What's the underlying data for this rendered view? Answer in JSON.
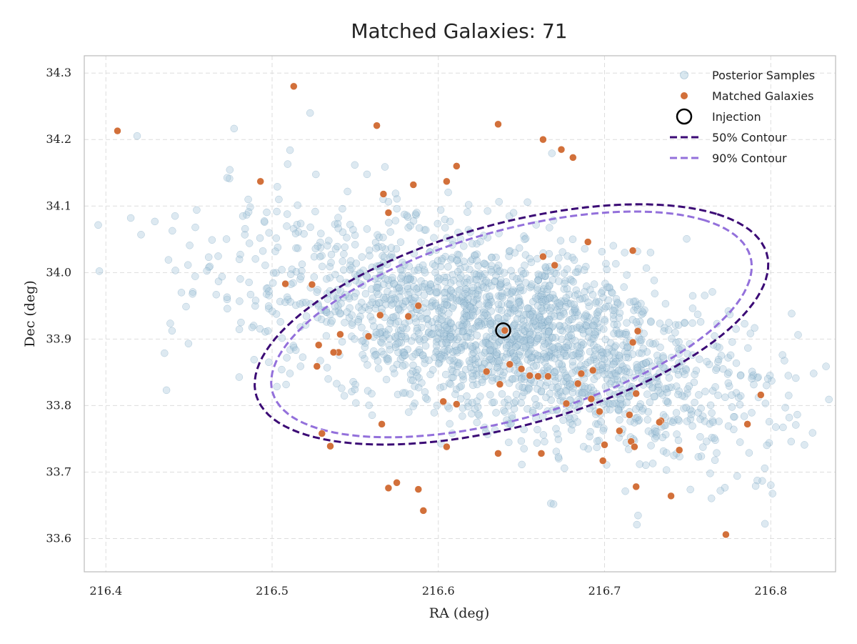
{
  "chart_data": {
    "type": "scatter",
    "title": "Matched Galaxies: 71",
    "xlabel": "RA (deg)",
    "ylabel": "Dec (deg)",
    "xlim": [
      216.387,
      216.839
    ],
    "ylim": [
      33.55,
      34.326
    ],
    "xticks": [
      216.4,
      216.5,
      216.6,
      216.7,
      216.8
    ],
    "xtick_labels": [
      "216.4",
      "216.5",
      "216.6",
      "216.7",
      "216.8"
    ],
    "yticks": [
      33.6,
      33.7,
      33.8,
      33.9,
      34.0,
      34.1,
      34.2,
      34.3
    ],
    "ytick_labels": [
      "33.6",
      "33.7",
      "33.8",
      "33.9",
      "34.0",
      "34.1",
      "34.2",
      "34.3"
    ],
    "grid": true,
    "legend_position": "top-right",
    "legend": [
      "Posterior Samples",
      "Matched Galaxies",
      "Injection",
      "50% Contour",
      "90% Contour"
    ],
    "colors": {
      "posterior": "#a9c9dc",
      "posterior_edge": "#5b8fb0",
      "matched": "#d2703a",
      "injection": "#000000",
      "contour50": "#3b0a75",
      "contour90": "#9370db",
      "grid": "#dddddd",
      "frame": "#bbbbbb"
    },
    "posterior_samples": {
      "count": 2200,
      "center": [
        216.639,
        33.91
      ],
      "sigma_major": 0.098,
      "sigma_minor": 0.053,
      "angle_deg": -52
    },
    "injection": {
      "ra": 216.639,
      "dec": 33.913
    },
    "contour_50": {
      "center": [
        216.644,
        33.922
      ],
      "a": 0.208,
      "b": 0.118,
      "angle_deg": 53,
      "ra_per_deg_dec": 0.986
    },
    "contour_90": {
      "center": [
        216.644,
        33.922
      ],
      "a": 0.196,
      "b": 0.109,
      "angle_deg": 53,
      "ra_per_deg_dec": 0.986
    },
    "matched_galaxies": [
      [
        216.407,
        34.213
      ],
      [
        216.513,
        34.28
      ],
      [
        216.493,
        34.137
      ],
      [
        216.508,
        33.983
      ],
      [
        216.563,
        34.221
      ],
      [
        216.567,
        34.118
      ],
      [
        216.57,
        34.09
      ],
      [
        216.585,
        34.132
      ],
      [
        216.611,
        34.16
      ],
      [
        216.605,
        34.137
      ],
      [
        216.636,
        34.223
      ],
      [
        216.663,
        34.2
      ],
      [
        216.681,
        34.173
      ],
      [
        216.674,
        34.185
      ],
      [
        216.69,
        34.046
      ],
      [
        216.717,
        34.033
      ],
      [
        216.663,
        34.024
      ],
      [
        216.67,
        34.011
      ],
      [
        216.64,
        33.913
      ],
      [
        216.588,
        33.95
      ],
      [
        216.582,
        33.934
      ],
      [
        216.565,
        33.936
      ],
      [
        216.558,
        33.904
      ],
      [
        216.541,
        33.907
      ],
      [
        216.524,
        33.982
      ],
      [
        216.528,
        33.891
      ],
      [
        216.54,
        33.88
      ],
      [
        216.537,
        33.88
      ],
      [
        216.527,
        33.859
      ],
      [
        216.629,
        33.851
      ],
      [
        216.643,
        33.862
      ],
      [
        216.65,
        33.855
      ],
      [
        216.655,
        33.845
      ],
      [
        216.637,
        33.832
      ],
      [
        216.611,
        33.802
      ],
      [
        216.603,
        33.806
      ],
      [
        216.66,
        33.844
      ],
      [
        216.666,
        33.844
      ],
      [
        216.677,
        33.803
      ],
      [
        216.686,
        33.848
      ],
      [
        216.693,
        33.853
      ],
      [
        216.684,
        33.833
      ],
      [
        216.697,
        33.791
      ],
      [
        216.692,
        33.81
      ],
      [
        216.7,
        33.741
      ],
      [
        216.709,
        33.762
      ],
      [
        216.719,
        33.818
      ],
      [
        216.72,
        33.912
      ],
      [
        216.717,
        33.895
      ],
      [
        216.715,
        33.786
      ],
      [
        216.636,
        33.728
      ],
      [
        216.605,
        33.738
      ],
      [
        216.53,
        33.758
      ],
      [
        216.535,
        33.739
      ],
      [
        216.566,
        33.772
      ],
      [
        216.57,
        33.676
      ],
      [
        216.575,
        33.684
      ],
      [
        216.588,
        33.674
      ],
      [
        216.591,
        33.642
      ],
      [
        216.662,
        33.728
      ],
      [
        216.699,
        33.717
      ],
      [
        216.716,
        33.746
      ],
      [
        216.718,
        33.738
      ],
      [
        216.719,
        33.678
      ],
      [
        216.734,
        33.777
      ],
      [
        216.733,
        33.775
      ],
      [
        216.74,
        33.664
      ],
      [
        216.745,
        33.733
      ],
      [
        216.773,
        33.606
      ],
      [
        216.786,
        33.772
      ],
      [
        216.794,
        33.816
      ]
    ]
  }
}
